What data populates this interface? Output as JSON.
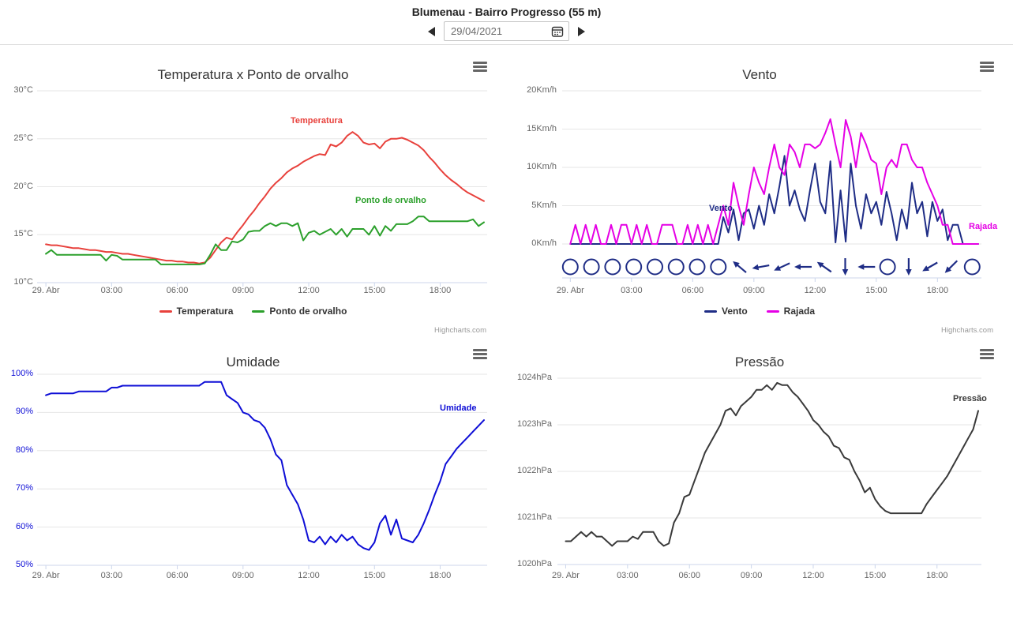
{
  "header": {
    "title": "Blumenau - Bairro Progresso (55 m)",
    "date_value": "29/04/2021"
  },
  "credits_label": "Highcharts.com",
  "chart_data": [
    {
      "type": "line",
      "title": "Temperatura x Ponto de orvalho",
      "xlabel": "",
      "ylabel": "",
      "ylim": [
        10,
        30
      ],
      "x_range_hours": [
        0,
        20
      ],
      "grid": true,
      "legend_position": "bottom",
      "y_label_color": "#666666",
      "y_ticks": [
        "30°C",
        "25°C",
        "20°C",
        "15°C",
        "10°C"
      ],
      "x_ticks": [
        "29. Abr",
        "03:00",
        "06:00",
        "09:00",
        "12:00",
        "15:00",
        "18:00"
      ],
      "series": [
        {
          "name": "Temperatura",
          "color": "#e8413c",
          "values": [
            14,
            13.9,
            13.9,
            13.8,
            13.7,
            13.6,
            13.6,
            13.5,
            13.4,
            13.4,
            13.3,
            13.2,
            13.2,
            13.1,
            13,
            13,
            12.9,
            12.8,
            12.7,
            12.6,
            12.5,
            12.4,
            12.3,
            12.3,
            12.2,
            12.2,
            12.1,
            12.1,
            12,
            12.1,
            12.6,
            13.4,
            14.2,
            14.7,
            14.5,
            15.3,
            16,
            16.8,
            17.5,
            18.3,
            19,
            19.8,
            20.4,
            20.9,
            21.5,
            21.9,
            22.2,
            22.6,
            22.9,
            23.2,
            23.4,
            23.3,
            24.4,
            24.2,
            24.6,
            25.3,
            25.7,
            25.3,
            24.6,
            24.4,
            24.5,
            24,
            24.7,
            25,
            25,
            25.1,
            24.9,
            24.6,
            24.3,
            23.8,
            23.1,
            22.5,
            21.8,
            21.2,
            20.7,
            20.3,
            19.8,
            19.4,
            19.1,
            18.8,
            18.5
          ]
        },
        {
          "name": "Ponto de orvalho",
          "color": "#2ca02c",
          "values": [
            13,
            13.4,
            12.9,
            12.9,
            12.9,
            12.9,
            12.9,
            12.9,
            12.9,
            12.9,
            12.9,
            12.3,
            12.9,
            12.8,
            12.4,
            12.4,
            12.4,
            12.4,
            12.4,
            12.4,
            12.4,
            11.9,
            11.9,
            11.9,
            11.9,
            11.9,
            11.9,
            11.9,
            11.9,
            12,
            12.9,
            14,
            13.4,
            13.4,
            14.3,
            14.2,
            14.5,
            15.3,
            15.4,
            15.4,
            15.9,
            16.2,
            15.9,
            16.2,
            16.2,
            15.9,
            16.2,
            14.4,
            15.2,
            15.4,
            15,
            15.3,
            15.6,
            15,
            15.6,
            14.8,
            15.6,
            15.6,
            15.6,
            15,
            15.9,
            14.9,
            15.9,
            15.4,
            16.1,
            16.1,
            16.1,
            16.4,
            16.9,
            16.9,
            16.4,
            16.4,
            16.4,
            16.4,
            16.4,
            16.4,
            16.4,
            16.4,
            16.6,
            15.9,
            16.3
          ]
        }
      ]
    },
    {
      "type": "line",
      "title": "Vento",
      "xlabel": "",
      "ylabel": "",
      "ylim": [
        0,
        20
      ],
      "x_range_hours": [
        0,
        20
      ],
      "grid": true,
      "legend_position": "bottom",
      "y_label_color": "#666666",
      "y_ticks": [
        "20Km/h",
        "15Km/h",
        "10Km/h",
        "5Km/h",
        "0Km/h"
      ],
      "x_ticks": [
        "29. Abr",
        "03:00",
        "06:00",
        "09:00",
        "12:00",
        "15:00",
        "18:00"
      ],
      "series": [
        {
          "name": "Vento",
          "color": "#1f2d86",
          "values": [
            0,
            0,
            0,
            0,
            0,
            0,
            0,
            0,
            0,
            0,
            0,
            0,
            0,
            0,
            0,
            0,
            0,
            0,
            0,
            0,
            0,
            0,
            0,
            0,
            0,
            0,
            0,
            0,
            0,
            0,
            3.5,
            1.5,
            4.5,
            0.5,
            4,
            4.5,
            2,
            5,
            2.5,
            6.5,
            4,
            7.5,
            11.5,
            5,
            7,
            4.5,
            3,
            7,
            10.5,
            5.5,
            4,
            10.8,
            0.2,
            7,
            0.3,
            10.5,
            5,
            2,
            6.5,
            4,
            5.5,
            2.5,
            6.8,
            4,
            0.5,
            4.5,
            2,
            8,
            4,
            5.5,
            1,
            5.5,
            3,
            4.5,
            0.5,
            2.5,
            2.5,
            0,
            0,
            0,
            0
          ]
        },
        {
          "name": "Rajada",
          "color": "#e500e5",
          "values": [
            0,
            2.5,
            0,
            2.5,
            0,
            2.5,
            0,
            0,
            2.5,
            0,
            2.5,
            2.5,
            0,
            2.5,
            0,
            2.5,
            0,
            0,
            2.5,
            2.5,
            2.5,
            0,
            0,
            2.5,
            0,
            2.5,
            0,
            2.5,
            0,
            2.5,
            5,
            2.5,
            8,
            5,
            2.5,
            6.5,
            10,
            8,
            6.5,
            10,
            13,
            10,
            9,
            13,
            12,
            10,
            13,
            13,
            12.5,
            13,
            14.5,
            16.3,
            13,
            10,
            16.2,
            14,
            10,
            14.5,
            13,
            11,
            10.5,
            6.5,
            10,
            11,
            10,
            13,
            13,
            11,
            10,
            10,
            8,
            6.5,
            5,
            2.5,
            2.5,
            0,
            0,
            0,
            0,
            0,
            0
          ]
        }
      ],
      "wind_direction_symbols": [
        {
          "type": "calm"
        },
        {
          "type": "calm"
        },
        {
          "type": "calm"
        },
        {
          "type": "calm"
        },
        {
          "type": "calm"
        },
        {
          "type": "calm"
        },
        {
          "type": "calm"
        },
        {
          "type": "calm"
        },
        {
          "type": "arrow",
          "angle": 40
        },
        {
          "type": "arrow",
          "angle": -10
        },
        {
          "type": "arrow",
          "angle": -25
        },
        {
          "type": "arrow",
          "angle": 0
        },
        {
          "type": "arrow",
          "angle": 35
        },
        {
          "type": "arrow",
          "angle": -90
        },
        {
          "type": "arrow",
          "angle": 0
        },
        {
          "type": "calm"
        },
        {
          "type": "arrow",
          "angle": -90
        },
        {
          "type": "arrow",
          "angle": -30
        },
        {
          "type": "arrow",
          "angle": -45
        },
        {
          "type": "calm"
        }
      ]
    },
    {
      "type": "line",
      "title": "Umidade",
      "xlabel": "",
      "ylabel": "",
      "ylim": [
        50,
        100
      ],
      "x_range_hours": [
        0,
        20
      ],
      "grid": true,
      "legend_position": "bottom",
      "y_label_color": "#0e0ed6",
      "y_ticks": [
        "100%",
        "90%",
        "80%",
        "70%",
        "60%",
        "50%"
      ],
      "x_ticks": [
        "29. Abr",
        "03:00",
        "06:00",
        "09:00",
        "12:00",
        "15:00",
        "18:00"
      ],
      "series": [
        {
          "name": "Umidade",
          "color": "#0e0ed6",
          "values": [
            94.5,
            95,
            95,
            95,
            95,
            95,
            95.5,
            95.5,
            95.5,
            95.5,
            95.5,
            95.5,
            96.5,
            96.5,
            97,
            97,
            97,
            97,
            97,
            97,
            97,
            97,
            97,
            97,
            97,
            97,
            97,
            97,
            97,
            98,
            98,
            98,
            98,
            94.5,
            93.5,
            92.5,
            90,
            89.5,
            88,
            87.5,
            86,
            83,
            79,
            77.5,
            71,
            68.5,
            66,
            62,
            56.5,
            56,
            57.5,
            55.5,
            57.5,
            56,
            58,
            56.5,
            57.5,
            55.5,
            54.5,
            54,
            56,
            61,
            63,
            58,
            62,
            57,
            56.5,
            56,
            58,
            61,
            64.5,
            68.5,
            72,
            76.5,
            78.5,
            80.5,
            82,
            83.5,
            85,
            86.5,
            88
          ]
        }
      ]
    },
    {
      "type": "line",
      "title": "Pressão",
      "xlabel": "",
      "ylabel": "",
      "ylim": [
        1020,
        1024
      ],
      "x_range_hours": [
        0,
        20
      ],
      "grid": true,
      "legend_position": "bottom",
      "y_label_color": "#666666",
      "y_ticks": [
        "1024hPa",
        "1023hPa",
        "1022hPa",
        "1021hPa",
        "1020hPa"
      ],
      "x_ticks": [
        "29. Abr",
        "03:00",
        "06:00",
        "09:00",
        "12:00",
        "15:00",
        "18:00"
      ],
      "series": [
        {
          "name": "Pressão",
          "color": "#3a3a3a",
          "values": [
            1020.5,
            1020.5,
            1020.6,
            1020.7,
            1020.6,
            1020.7,
            1020.6,
            1020.6,
            1020.5,
            1020.4,
            1020.5,
            1020.5,
            1020.5,
            1020.6,
            1020.55,
            1020.7,
            1020.7,
            1020.7,
            1020.5,
            1020.4,
            1020.45,
            1020.9,
            1021.1,
            1021.45,
            1021.5,
            1021.8,
            1022.1,
            1022.4,
            1022.6,
            1022.8,
            1023,
            1023.3,
            1023.35,
            1023.2,
            1023.4,
            1023.5,
            1023.6,
            1023.75,
            1023.75,
            1023.85,
            1023.75,
            1023.9,
            1023.85,
            1023.85,
            1023.7,
            1023.6,
            1023.45,
            1023.3,
            1023.1,
            1023,
            1022.85,
            1022.75,
            1022.55,
            1022.5,
            1022.3,
            1022.25,
            1022,
            1021.8,
            1021.55,
            1021.65,
            1021.4,
            1021.25,
            1021.15,
            1021.1,
            1021.1,
            1021.1,
            1021.1,
            1021.1,
            1021.1,
            1021.1,
            1021.3,
            1021.45,
            1021.6,
            1021.75,
            1021.9,
            1022.1,
            1022.3,
            1022.5,
            1022.7,
            1022.9,
            1023.3
          ]
        }
      ]
    }
  ]
}
